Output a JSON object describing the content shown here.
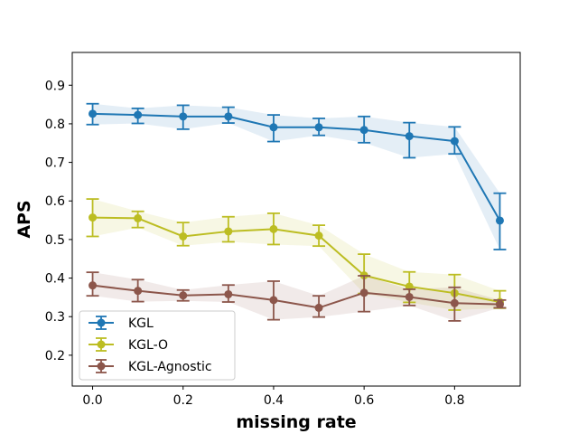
{
  "chart_data": {
    "type": "line",
    "title": "",
    "xlabel": "missing rate",
    "ylabel": "APS",
    "xlim": [
      -0.045,
      0.945
    ],
    "ylim": [
      0.12,
      0.985
    ],
    "x_ticks": [
      0.0,
      0.2,
      0.4,
      0.6,
      0.8
    ],
    "x_tick_labels": [
      "0.0",
      "0.2",
      "0.4",
      "0.6",
      "0.8"
    ],
    "y_ticks": [
      0.2,
      0.3,
      0.4,
      0.5,
      0.6,
      0.7,
      0.8,
      0.9
    ],
    "y_tick_labels": [
      "0.2",
      "0.3",
      "0.4",
      "0.5",
      "0.6",
      "0.7",
      "0.8",
      "0.9"
    ],
    "grid": false,
    "legend_position": "lower-left",
    "x": [
      0.0,
      0.1,
      0.2,
      0.3,
      0.4,
      0.5,
      0.6,
      0.7,
      0.8,
      0.9
    ],
    "series": [
      {
        "name": "KGL",
        "color": "#1f77b4",
        "values": [
          0.826,
          0.823,
          0.819,
          0.819,
          0.791,
          0.791,
          0.784,
          0.768,
          0.755,
          0.549
        ],
        "error_low": [
          0.798,
          0.801,
          0.786,
          0.802,
          0.754,
          0.77,
          0.751,
          0.712,
          0.722,
          0.474
        ],
        "error_high": [
          0.852,
          0.84,
          0.848,
          0.843,
          0.823,
          0.814,
          0.819,
          0.803,
          0.792,
          0.62
        ]
      },
      {
        "name": "KGL-O",
        "color": "#bcbd22",
        "values": [
          0.557,
          0.555,
          0.508,
          0.521,
          0.527,
          0.51,
          0.407,
          0.378,
          0.361,
          0.338
        ],
        "error_low": [
          0.508,
          0.531,
          0.484,
          0.494,
          0.487,
          0.483,
          0.36,
          0.337,
          0.317,
          0.322
        ],
        "error_high": [
          0.605,
          0.573,
          0.544,
          0.559,
          0.568,
          0.537,
          0.462,
          0.416,
          0.409,
          0.367
        ]
      },
      {
        "name": "KGL-Agnostic",
        "color": "#8c564b",
        "values": [
          0.381,
          0.367,
          0.355,
          0.358,
          0.343,
          0.323,
          0.362,
          0.351,
          0.335,
          0.332
        ],
        "error_low": [
          0.354,
          0.339,
          0.341,
          0.338,
          0.292,
          0.299,
          0.313,
          0.329,
          0.289,
          0.323
        ],
        "error_high": [
          0.415,
          0.396,
          0.369,
          0.382,
          0.392,
          0.354,
          0.406,
          0.371,
          0.376,
          0.343
        ]
      }
    ]
  }
}
